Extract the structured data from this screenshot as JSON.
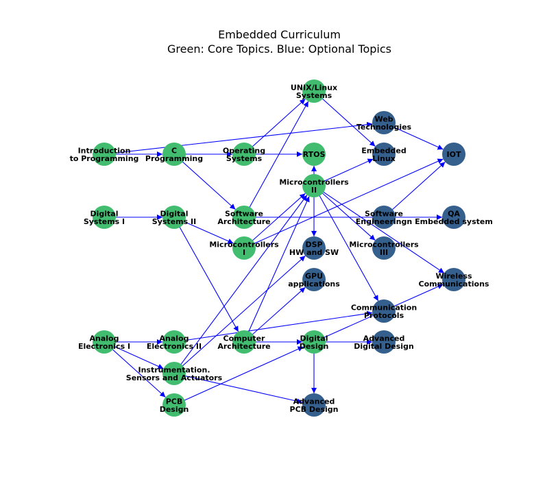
{
  "title": "Embedded Curriculum",
  "subtitle": "Green: Core Topics. Blue: Optional Topics",
  "colors": {
    "core": "#42bd70",
    "optional": "#355f8d",
    "edge": "#0000ff"
  },
  "nodes": [
    {
      "id": "intro",
      "label": [
        "Introduction",
        "to Programming"
      ],
      "type": "core"
    },
    {
      "id": "c",
      "label": [
        "C",
        "Programming"
      ],
      "type": "core"
    },
    {
      "id": "os",
      "label": [
        "Operating",
        "Systems"
      ],
      "type": "core"
    },
    {
      "id": "rtos",
      "label": [
        "RTOS"
      ],
      "type": "core"
    },
    {
      "id": "unix",
      "label": [
        "UNIX/Linux",
        "Systems"
      ],
      "type": "core"
    },
    {
      "id": "web",
      "label": [
        "Web",
        "Technologies"
      ],
      "type": "optional"
    },
    {
      "id": "elinux",
      "label": [
        "Embedded",
        "Linux"
      ],
      "type": "optional"
    },
    {
      "id": "iot",
      "label": [
        "IOT"
      ],
      "type": "optional"
    },
    {
      "id": "mc2",
      "label": [
        "Microcontrollers",
        "II"
      ],
      "type": "core"
    },
    {
      "id": "ds1",
      "label": [
        "Digital",
        "Systems I"
      ],
      "type": "core"
    },
    {
      "id": "ds2",
      "label": [
        "Digital",
        "Systems II"
      ],
      "type": "core"
    },
    {
      "id": "swarch",
      "label": [
        "Software",
        "Architecture"
      ],
      "type": "core"
    },
    {
      "id": "sweng",
      "label": [
        "Software",
        "Engineeringn"
      ],
      "type": "optional"
    },
    {
      "id": "qa",
      "label": [
        "QA",
        "Embedded system"
      ],
      "type": "optional"
    },
    {
      "id": "mc1",
      "label": [
        "Microcontrollers",
        "I"
      ],
      "type": "core"
    },
    {
      "id": "dsp",
      "label": [
        "DSP",
        "HW and SW"
      ],
      "type": "optional"
    },
    {
      "id": "mc3",
      "label": [
        "Microcontrollers",
        "III"
      ],
      "type": "optional"
    },
    {
      "id": "gpu",
      "label": [
        "GPU",
        "applications"
      ],
      "type": "optional"
    },
    {
      "id": "wireless",
      "label": [
        "Wireless",
        "Communications"
      ],
      "type": "optional"
    },
    {
      "id": "comm",
      "label": [
        "Communication",
        "Protocols"
      ],
      "type": "optional"
    },
    {
      "id": "ae1",
      "label": [
        "Analog",
        "Electronics I"
      ],
      "type": "core"
    },
    {
      "id": "ae2",
      "label": [
        "Analog",
        "Electronics II"
      ],
      "type": "core"
    },
    {
      "id": "comparch",
      "label": [
        "Computer",
        "Architecture"
      ],
      "type": "core"
    },
    {
      "id": "dd",
      "label": [
        "Digital",
        "Design"
      ],
      "type": "core"
    },
    {
      "id": "add",
      "label": [
        "Advanced",
        "Digital Design"
      ],
      "type": "optional"
    },
    {
      "id": "instr",
      "label": [
        "Instrumentation.",
        "Sensors and Actuators"
      ],
      "type": "core"
    },
    {
      "id": "pcb",
      "label": [
        "PCB",
        "Design"
      ],
      "type": "core"
    },
    {
      "id": "apcb",
      "label": [
        "Advanced",
        "PCB Design"
      ],
      "type": "optional"
    }
  ],
  "edges": [
    [
      "intro",
      "c"
    ],
    [
      "intro",
      "web"
    ],
    [
      "c",
      "os"
    ],
    [
      "c",
      "rtos"
    ],
    [
      "c",
      "swarch"
    ],
    [
      "os",
      "unix"
    ],
    [
      "unix",
      "elinux"
    ],
    [
      "web",
      "iot"
    ],
    [
      "mc2",
      "rtos"
    ],
    [
      "mc2",
      "elinux"
    ],
    [
      "mc2",
      "dsp"
    ],
    [
      "mc2",
      "mc3"
    ],
    [
      "mc2",
      "wireless"
    ],
    [
      "mc2",
      "comm"
    ],
    [
      "ds1",
      "ds2"
    ],
    [
      "ds2",
      "mc1"
    ],
    [
      "ds2",
      "comparch"
    ],
    [
      "swarch",
      "unix"
    ],
    [
      "swarch",
      "qa"
    ],
    [
      "sweng",
      "iot"
    ],
    [
      "mc1",
      "mc2"
    ],
    [
      "mc1",
      "iot"
    ],
    [
      "ae1",
      "ae2"
    ],
    [
      "ae1",
      "instr"
    ],
    [
      "ae1",
      "pcb"
    ],
    [
      "ae2",
      "comm"
    ],
    [
      "instr",
      "mc2"
    ],
    [
      "instr",
      "dsp"
    ],
    [
      "instr",
      "apcb"
    ],
    [
      "comparch",
      "dd"
    ],
    [
      "comparch",
      "gpu"
    ],
    [
      "comparch",
      "mc2"
    ],
    [
      "dd",
      "add"
    ],
    [
      "dd",
      "apcb"
    ],
    [
      "dd",
      "wireless"
    ],
    [
      "pcb",
      "dd"
    ]
  ]
}
